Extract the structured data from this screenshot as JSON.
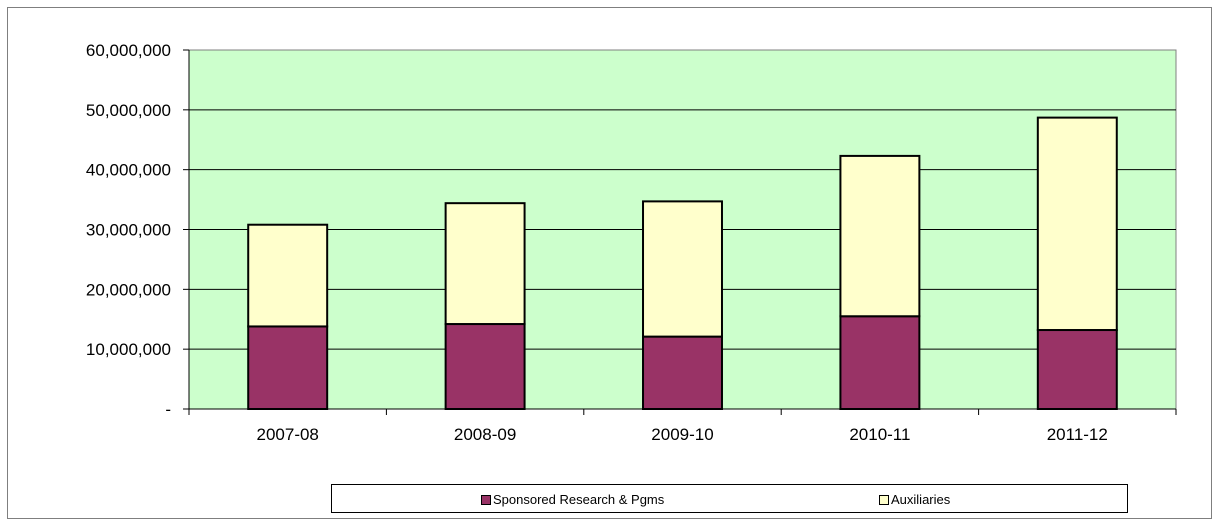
{
  "chart_data": {
    "type": "bar",
    "stacked": true,
    "categories": [
      "2007-08",
      "2008-09",
      "2009-10",
      "2010-11",
      "2011-12"
    ],
    "series": [
      {
        "name": "Sponsored Research & Pgms",
        "color": "#993366",
        "values": [
          13800000,
          14200000,
          12100000,
          15500000,
          13200000
        ]
      },
      {
        "name": "Auxiliaries",
        "color": "#ffffcc",
        "values": [
          17000000,
          20200000,
          22600000,
          26800000,
          35500000
        ]
      }
    ],
    "ylim": [
      0,
      60000000
    ],
    "yticks": [
      0,
      10000000,
      20000000,
      30000000,
      40000000,
      50000000,
      60000000
    ],
    "ytick_labels": [
      "-",
      "10,000,000",
      "20,000,000",
      "30,000,000",
      "40,000,000",
      "50,000,000",
      "60,000,000"
    ],
    "grid": true,
    "plot_background": "#ccffcc",
    "legend_position": "bottom"
  }
}
